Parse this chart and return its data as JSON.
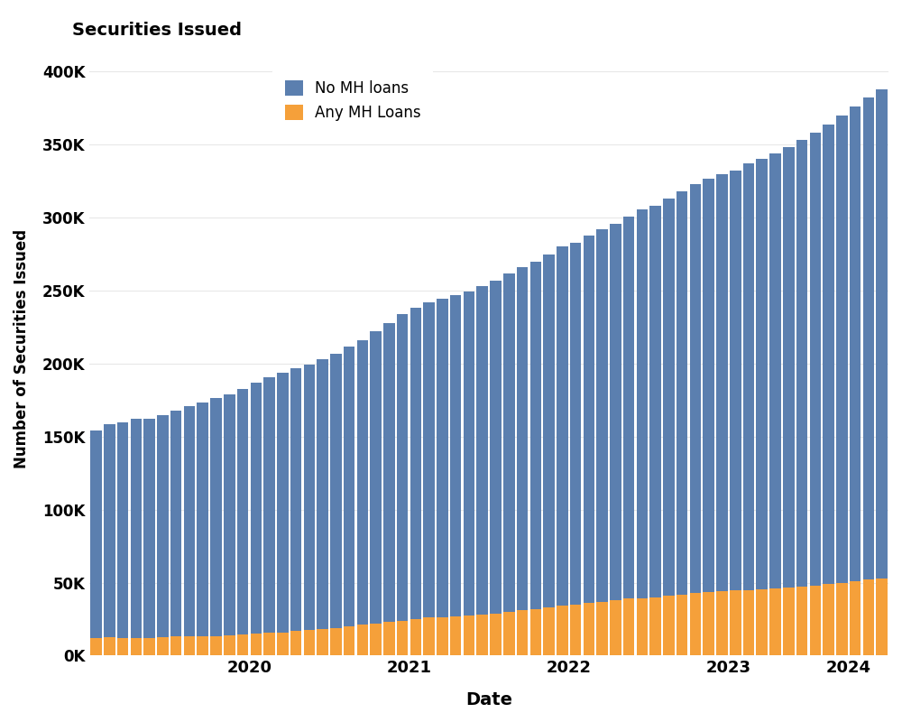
{
  "title": "Securities Issued",
  "ylabel": "Number of Securities Issued",
  "xlabel": "Date",
  "blue_color": "#5b7faf",
  "orange_color": "#f5a03a",
  "background_color": "#ffffff",
  "grid_color": "#e8e8e8",
  "ylim": [
    0,
    420000
  ],
  "yticks": [
    0,
    50000,
    100000,
    150000,
    200000,
    250000,
    300000,
    350000,
    400000
  ],
  "ytick_labels": [
    "0K",
    "50K",
    "100K",
    "150K",
    "200K",
    "250K",
    "300K",
    "350K",
    "400K"
  ],
  "legend_labels": [
    "No MH loans",
    "Any MH Loans"
  ],
  "no_mh": [
    142000,
    146000,
    148000,
    150000,
    150000,
    152000,
    155000,
    158000,
    160000,
    163000,
    165000,
    168000,
    172000,
    175000,
    178000,
    180000,
    182000,
    185000,
    188000,
    192000,
    195000,
    200000,
    205000,
    210000,
    213000,
    216000,
    218000,
    220000,
    222000,
    225000,
    228000,
    232000,
    235000,
    238000,
    242000,
    246000,
    248000,
    252000,
    255000,
    258000,
    262000,
    266000,
    268000,
    272000,
    276000,
    280000,
    283000,
    286000,
    288000,
    292000,
    295000,
    298000,
    302000,
    306000,
    310000,
    315000,
    320000,
    325000,
    330000,
    335000
  ],
  "any_mh": [
    12000,
    12500,
    12000,
    12000,
    12000,
    12500,
    13000,
    13000,
    13500,
    13500,
    14000,
    14500,
    15000,
    15500,
    16000,
    17000,
    17500,
    18000,
    19000,
    20000,
    21000,
    22000,
    23000,
    24000,
    25000,
    26000,
    26500,
    27000,
    27500,
    28000,
    29000,
    30000,
    31000,
    32000,
    33000,
    34000,
    35000,
    36000,
    37000,
    38000,
    39000,
    39500,
    40000,
    41000,
    42000,
    43000,
    43500,
    44000,
    44500,
    45000,
    45500,
    46000,
    46500,
    47000,
    48000,
    49000,
    50000,
    51000,
    52000,
    53000
  ]
}
